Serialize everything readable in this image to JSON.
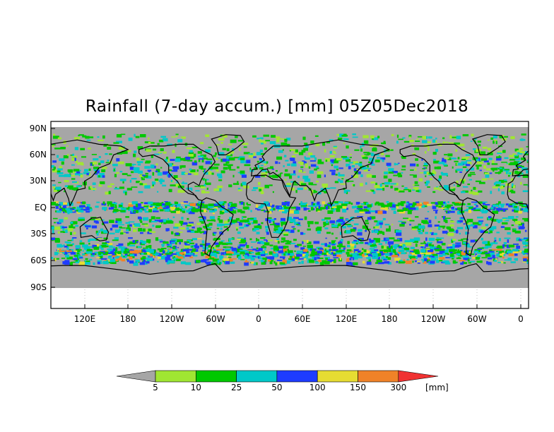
{
  "title": "Rainfall (7-day accum.) [mm] 05Z05Dec2018",
  "lat_labels": [
    "90N",
    "60N",
    "30N",
    "EQ",
    "30S",
    "60S",
    "90S"
  ],
  "lon_labels": [
    "120E",
    "180",
    "120W",
    "60W",
    "0",
    "60E",
    "120E",
    "180",
    "120W",
    "60W",
    "0"
  ],
  "colorbar": {
    "unit": "[mm]",
    "thresholds": [
      "5",
      "10",
      "25",
      "50",
      "100",
      "150",
      "300"
    ],
    "colors": [
      "#a6a6a6",
      "#a0e632",
      "#00c800",
      "#00c8c8",
      "#1e3cff",
      "#e6dc32",
      "#f08228",
      "#f03232"
    ]
  },
  "colors": {
    "background_no_rain": "#a6a6a6",
    "land_outline": "#000000"
  }
}
